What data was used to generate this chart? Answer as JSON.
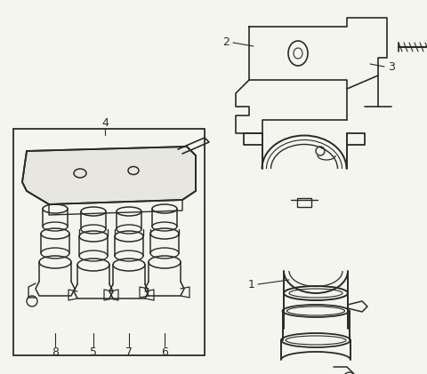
{
  "background_color": "#f5f5f0",
  "line_color": "#2a2a2a",
  "label_color": "#1a1a1a",
  "fig_width": 4.8,
  "fig_height": 4.21,
  "dpi": 100,
  "xlim": [
    0,
    480
  ],
  "ylim": [
    0,
    421
  ]
}
